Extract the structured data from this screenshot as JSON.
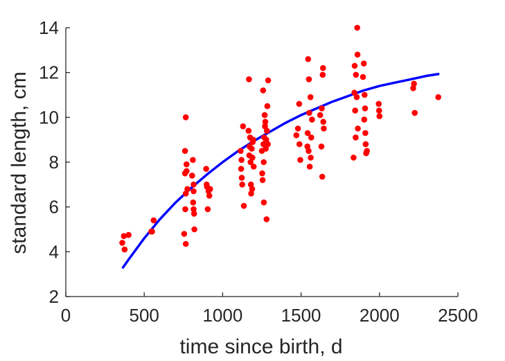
{
  "chart_data": {
    "type": "scatter",
    "xlabel": "time since birth, d",
    "ylabel": "standard length, cm",
    "xlim": [
      0,
      2500
    ],
    "ylim": [
      2,
      14
    ],
    "xticks": [
      "0",
      "500",
      "1000",
      "1500",
      "2000",
      "2500"
    ],
    "yticks": [
      "2",
      "4",
      "6",
      "8",
      "10",
      "12",
      "14"
    ],
    "grid": false,
    "legend": "none",
    "colors": {
      "points": "#ff0000",
      "fit": "#0000ff",
      "axis": "#262626"
    },
    "series": [
      {
        "type": "scatter",
        "points": [
          [
            360,
            4.4
          ],
          [
            370,
            4.7
          ],
          [
            375,
            4.1
          ],
          [
            400,
            4.75
          ],
          [
            545,
            4.9
          ],
          [
            550,
            4.9
          ],
          [
            560,
            5.4
          ],
          [
            755,
            4.8
          ],
          [
            760,
            8.5
          ],
          [
            760,
            7.5
          ],
          [
            762,
            5.9
          ],
          [
            765,
            4.35
          ],
          [
            765,
            6.6
          ],
          [
            765,
            10.0
          ],
          [
            770,
            7.6
          ],
          [
            770,
            7.9
          ],
          [
            775,
            6.8
          ],
          [
            805,
            7.4
          ],
          [
            810,
            8.1
          ],
          [
            812,
            6.2
          ],
          [
            815,
            7.0
          ],
          [
            815,
            6.7
          ],
          [
            815,
            5.9
          ],
          [
            818,
            5.7
          ],
          [
            820,
            5.0
          ],
          [
            895,
            7.7
          ],
          [
            898,
            7.0
          ],
          [
            900,
            6.9
          ],
          [
            905,
            5.9
          ],
          [
            910,
            6.7
          ],
          [
            915,
            6.5
          ],
          [
            920,
            6.8
          ],
          [
            1115,
            8.5
          ],
          [
            1118,
            7.7
          ],
          [
            1120,
            8.1
          ],
          [
            1122,
            7.3
          ],
          [
            1125,
            7.0
          ],
          [
            1130,
            9.6
          ],
          [
            1135,
            6.05
          ],
          [
            1165,
            9.4
          ],
          [
            1168,
            11.7
          ],
          [
            1170,
            8.3
          ],
          [
            1172,
            8.7
          ],
          [
            1175,
            9.1
          ],
          [
            1178,
            8.0
          ],
          [
            1180,
            7.0
          ],
          [
            1182,
            6.6
          ],
          [
            1185,
            8.6
          ],
          [
            1188,
            6.8
          ],
          [
            1190,
            8.2
          ],
          [
            1192,
            8.9
          ],
          [
            1195,
            9.0
          ],
          [
            1198,
            7.8
          ],
          [
            1250,
            8.5
          ],
          [
            1252,
            7.5
          ],
          [
            1255,
            7.2
          ],
          [
            1258,
            11.2
          ],
          [
            1260,
            8.8
          ],
          [
            1262,
            8.0
          ],
          [
            1263,
            6.2
          ],
          [
            1265,
            9.1
          ],
          [
            1268,
            10.1
          ],
          [
            1270,
            9.6
          ],
          [
            1272,
            9.8
          ],
          [
            1275,
            8.6
          ],
          [
            1278,
            9.0
          ],
          [
            1280,
            5.45
          ],
          [
            1282,
            9.4
          ],
          [
            1285,
            10.5
          ],
          [
            1288,
            8.8
          ],
          [
            1290,
            11.65
          ],
          [
            1470,
            9.2
          ],
          [
            1480,
            9.5
          ],
          [
            1488,
            10.6
          ],
          [
            1490,
            8.8
          ],
          [
            1495,
            8.1
          ],
          [
            1540,
            8.7
          ],
          [
            1542,
            9.3
          ],
          [
            1545,
            12.6
          ],
          [
            1548,
            8.5
          ],
          [
            1550,
            11.7
          ],
          [
            1552,
            10.2
          ],
          [
            1555,
            7.8
          ],
          [
            1560,
            10.9
          ],
          [
            1562,
            8.2
          ],
          [
            1565,
            9.1
          ],
          [
            1570,
            9.9
          ],
          [
            1622,
            10.1
          ],
          [
            1630,
            8.7
          ],
          [
            1632,
            10.4
          ],
          [
            1635,
            7.35
          ],
          [
            1638,
            11.9
          ],
          [
            1640,
            12.2
          ],
          [
            1642,
            9.8
          ],
          [
            1645,
            9.5
          ],
          [
            1835,
            8.2
          ],
          [
            1840,
            11.1
          ],
          [
            1842,
            12.3
          ],
          [
            1845,
            10.3
          ],
          [
            1848,
            9.1
          ],
          [
            1850,
            11.9
          ],
          [
            1855,
            10.9
          ],
          [
            1858,
            14.0
          ],
          [
            1860,
            12.8
          ],
          [
            1862,
            9.5
          ],
          [
            1895,
            11.8
          ],
          [
            1900,
            12.4
          ],
          [
            1903,
            9.9
          ],
          [
            1905,
            11.0
          ],
          [
            1908,
            10.4
          ],
          [
            1910,
            9.3
          ],
          [
            1912,
            8.8
          ],
          [
            1915,
            8.4
          ],
          [
            1920,
            8.5
          ],
          [
            1995,
            10.6
          ],
          [
            1998,
            10.3
          ],
          [
            2000,
            10.05
          ],
          [
            2215,
            11.3
          ],
          [
            2220,
            11.5
          ],
          [
            2225,
            10.2
          ],
          [
            2375,
            10.9
          ]
        ]
      },
      {
        "type": "line",
        "x": [
          365,
          400,
          500,
          600,
          700,
          800,
          900,
          1000,
          1100,
          1200,
          1300,
          1400,
          1500,
          1600,
          1700,
          1800,
          1900,
          2000,
          2100,
          2200,
          2300,
          2375
        ],
        "y": [
          3.3,
          3.65,
          4.6,
          5.45,
          6.2,
          6.85,
          7.45,
          8.0,
          8.5,
          8.95,
          9.35,
          9.75,
          10.1,
          10.4,
          10.7,
          10.95,
          11.2,
          11.4,
          11.55,
          11.7,
          11.85,
          11.93
        ]
      }
    ]
  }
}
